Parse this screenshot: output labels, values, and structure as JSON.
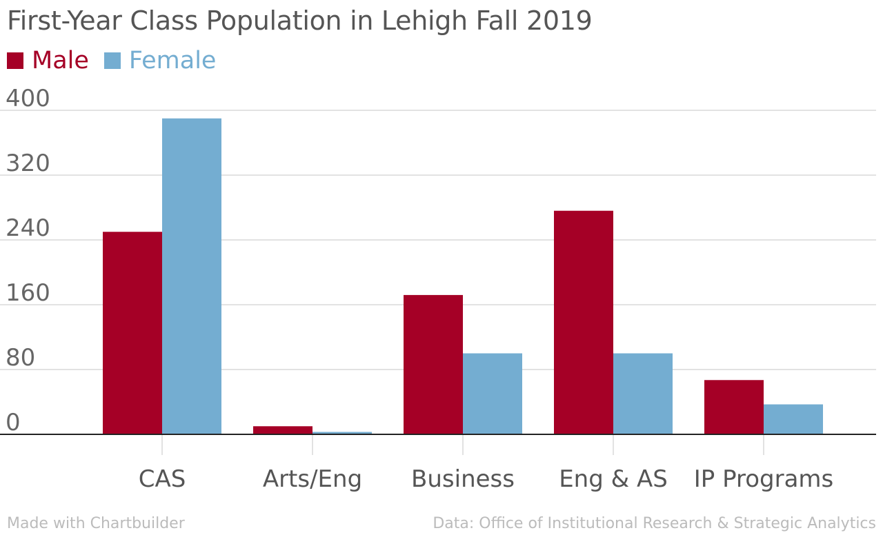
{
  "chart_data": {
    "type": "bar",
    "title": "First-Year Class Population in Lehigh Fall 2019",
    "categories": [
      "CAS",
      "Arts/Eng",
      "Business",
      "Eng & AS",
      "IP Programs"
    ],
    "series": [
      {
        "name": "Male",
        "color": "#a50026",
        "values": [
          250,
          10,
          172,
          276,
          67
        ]
      },
      {
        "name": "Female",
        "color": "#74add1",
        "values": [
          390,
          3,
          100,
          100,
          37
        ]
      }
    ],
    "xlabel": "",
    "ylabel": "",
    "ylim": [
      0,
      400
    ],
    "yticks": [
      "0",
      "80",
      "160",
      "240",
      "320",
      "400"
    ],
    "grid": true,
    "legend": "top-left"
  },
  "footer": {
    "left": "Made with Chartbuilder",
    "right": "Data: Office of Institutional Research & Strategic Analytics"
  }
}
